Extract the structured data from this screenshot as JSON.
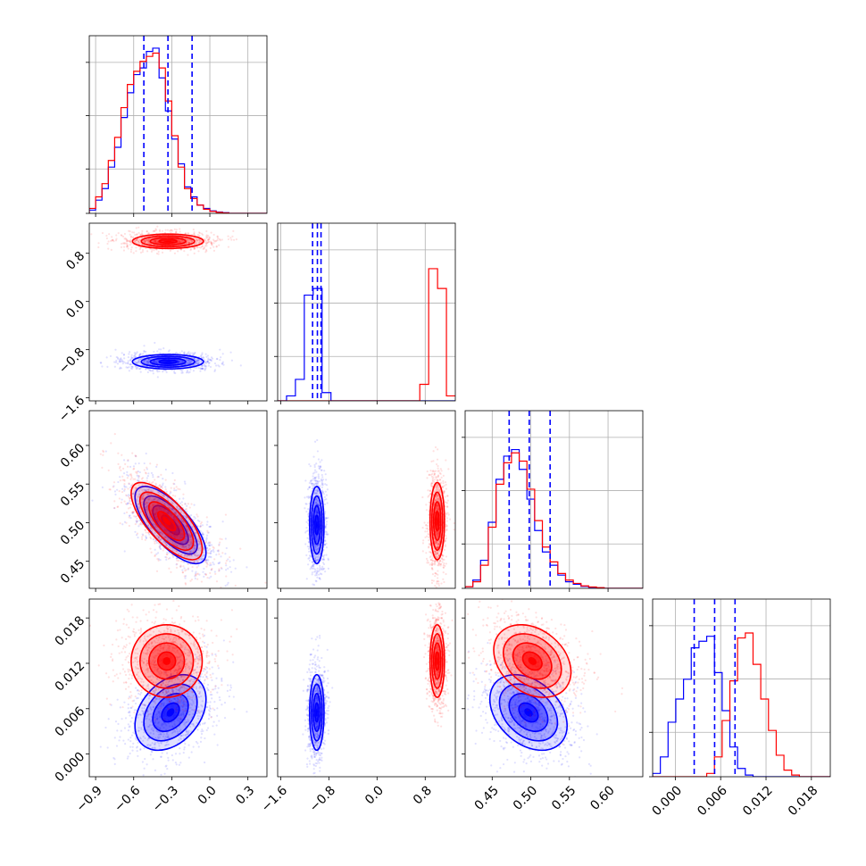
{
  "colors": {
    "series_a": "#0000ff",
    "series_b": "#ff0000",
    "grid": "#b0b0b0",
    "axis": "#000000"
  },
  "chart_data": {
    "type": "corner",
    "grid": true,
    "series_colors": [
      "#0000ff",
      "#ff0000"
    ],
    "parameters": [
      {
        "range": [
          -0.95,
          0.45
        ],
        "ticks": [
          -0.9,
          -0.6,
          -0.3,
          0.0,
          0.3
        ],
        "tick_labels": [
          "−0.9",
          "−0.6",
          "−0.3",
          "0.0",
          "0.3"
        ]
      },
      {
        "range": [
          -1.65,
          1.3
        ],
        "ticks": [
          -1.6,
          -0.8,
          0.0,
          0.8
        ],
        "tick_labels": [
          "−1.6",
          "−0.8",
          "0.0",
          "0.8"
        ]
      },
      {
        "range": [
          0.415,
          0.645
        ],
        "ticks": [
          0.45,
          0.5,
          0.55,
          0.6
        ],
        "tick_labels": [
          "0.45",
          "0.50",
          "0.55",
          "0.60"
        ]
      },
      {
        "range": [
          -0.003,
          0.0205
        ],
        "ticks": [
          0.0,
          0.006,
          0.012,
          0.018
        ],
        "tick_labels": [
          "0.000",
          "0.006",
          "0.012",
          "0.018"
        ]
      }
    ],
    "histograms": [
      {
        "param": 0,
        "edges_range": [
          -0.95,
          0.45
        ],
        "bins": 28,
        "series": [
          {
            "color": "#0000ff",
            "values": [
              0.02,
              0.08,
              0.15,
              0.28,
              0.4,
              0.58,
              0.73,
              0.84,
              0.88,
              0.98,
              1.0,
              0.82,
              0.62,
              0.45,
              0.3,
              0.16,
              0.1,
              0.05,
              0.03,
              0.015,
              0.008,
              0.004,
              0,
              0,
              0,
              0,
              0,
              0
            ]
          },
          {
            "color": "#ff0000",
            "values": [
              0.03,
              0.1,
              0.18,
              0.32,
              0.46,
              0.64,
              0.78,
              0.86,
              0.92,
              0.95,
              0.97,
              0.88,
              0.68,
              0.47,
              0.28,
              0.15,
              0.09,
              0.05,
              0.025,
              0.012,
              0.006,
              0.003,
              0,
              0,
              0,
              0,
              0,
              0
            ]
          }
        ],
        "quantiles": [
          -0.52,
          -0.33,
          -0.14
        ]
      },
      {
        "param": 1,
        "edges_range": [
          -1.65,
          1.3
        ],
        "bins": 20,
        "series": [
          {
            "color": "#0000ff",
            "values": [
              0,
              0.03,
              0.13,
              0.64,
              0.68,
              0.05,
              0,
              0,
              0,
              0,
              0,
              0,
              0,
              0,
              0,
              0,
              0,
              0,
              0,
              0
            ]
          },
          {
            "color": "#ff0000",
            "values": [
              0,
              0,
              0,
              0,
              0,
              0,
              0,
              0,
              0,
              0,
              0,
              0,
              0,
              0,
              0,
              0,
              0.1,
              0.8,
              0.68,
              0.03
            ]
          }
        ],
        "quantiles": [
          -1.07,
          -0.99,
          -0.93
        ]
      },
      {
        "param": 2,
        "edges_range": [
          0.415,
          0.645
        ],
        "bins": 23,
        "series": [
          {
            "color": "#0000ff",
            "values": [
              0.01,
              0.05,
              0.17,
              0.4,
              0.66,
              0.8,
              0.84,
              0.72,
              0.54,
              0.35,
              0.22,
              0.14,
              0.08,
              0.04,
              0.025,
              0.012,
              0.006,
              0.003,
              0,
              0,
              0,
              0,
              0
            ]
          },
          {
            "color": "#ff0000",
            "values": [
              0.01,
              0.04,
              0.14,
              0.37,
              0.63,
              0.76,
              0.82,
              0.77,
              0.6,
              0.41,
              0.25,
              0.16,
              0.09,
              0.05,
              0.03,
              0.015,
              0.008,
              0.004,
              0,
              0,
              0,
              0,
              0
            ]
          }
        ],
        "quantiles": [
          0.472,
          0.498,
          0.525
        ]
      },
      {
        "param": 3,
        "edges_range": [
          -0.003,
          0.0205
        ],
        "bins": 23,
        "series": [
          {
            "color": "#0000ff",
            "values": [
              0.02,
              0.12,
              0.33,
              0.47,
              0.59,
              0.78,
              0.82,
              0.85,
              0.63,
              0.4,
              0.18,
              0.05,
              0.01,
              0,
              0,
              0,
              0,
              0,
              0,
              0,
              0,
              0,
              0
            ]
          },
          {
            "color": "#ff0000",
            "values": [
              0,
              0,
              0,
              0,
              0,
              0,
              0,
              0.02,
              0.12,
              0.34,
              0.58,
              0.84,
              0.87,
              0.68,
              0.47,
              0.28,
              0.13,
              0.04,
              0.01,
              0,
              0,
              0,
              0
            ]
          }
        ],
        "quantiles": [
          0.0025,
          0.0052,
          0.0079
        ]
      }
    ],
    "joint": [
      {
        "row": 1,
        "col": 0,
        "series": [
          {
            "color": "#0000ff",
            "mean": [
              -0.33,
              -1.0
            ],
            "sd": [
              0.14,
              0.06
            ],
            "rho": 0.0,
            "tail": 1.3
          },
          {
            "color": "#ff0000",
            "mean": [
              -0.33,
              1.0
            ],
            "sd": [
              0.14,
              0.06
            ],
            "rho": 0.0,
            "tail": 1.3
          }
        ]
      },
      {
        "row": 2,
        "col": 0,
        "series": [
          {
            "color": "#0000ff",
            "mean": [
              -0.31,
              0.497
            ],
            "sd": [
              0.14,
              0.025
            ],
            "rho": -0.72,
            "tail": 1.3
          },
          {
            "color": "#ff0000",
            "mean": [
              -0.34,
              0.502
            ],
            "sd": [
              0.14,
              0.025
            ],
            "rho": -0.72,
            "tail": 1.3
          }
        ]
      },
      {
        "row": 2,
        "col": 1,
        "series": [
          {
            "color": "#0000ff",
            "mean": [
              -1.0,
              0.497
            ],
            "sd": [
              0.06,
              0.025
            ],
            "rho": 0.0,
            "tail": 1.3
          },
          {
            "color": "#ff0000",
            "mean": [
              1.0,
              0.502
            ],
            "sd": [
              0.06,
              0.025
            ],
            "rho": 0.0,
            "tail": 1.3
          }
        ]
      },
      {
        "row": 3,
        "col": 0,
        "series": [
          {
            "color": "#0000ff",
            "mean": [
              -0.31,
              0.0055
            ],
            "sd": [
              0.14,
              0.0025
            ],
            "rho": 0.35,
            "tail": 1.3
          },
          {
            "color": "#ff0000",
            "mean": [
              -0.34,
              0.0123
            ],
            "sd": [
              0.14,
              0.0024
            ],
            "rho": 0.0,
            "tail": 1.3
          }
        ]
      },
      {
        "row": 3,
        "col": 1,
        "series": [
          {
            "color": "#0000ff",
            "mean": [
              -1.0,
              0.0055
            ],
            "sd": [
              0.06,
              0.0025
            ],
            "rho": 0.0,
            "tail": 1.3
          },
          {
            "color": "#ff0000",
            "mean": [
              1.0,
              0.0123
            ],
            "sd": [
              0.06,
              0.0024
            ],
            "rho": 0.0,
            "tail": 1.3
          }
        ]
      },
      {
        "row": 3,
        "col": 2,
        "series": [
          {
            "color": "#0000ff",
            "mean": [
              0.497,
              0.0055
            ],
            "sd": [
              0.025,
              0.0025
            ],
            "rho": -0.35,
            "tail": 1.3
          },
          {
            "color": "#ff0000",
            "mean": [
              0.502,
              0.0123
            ],
            "sd": [
              0.025,
              0.0024
            ],
            "rho": -0.3,
            "tail": 1.3
          }
        ]
      }
    ],
    "contour_levels_sigma": [
      0.5,
      1.0,
      1.5,
      2.0
    ]
  }
}
